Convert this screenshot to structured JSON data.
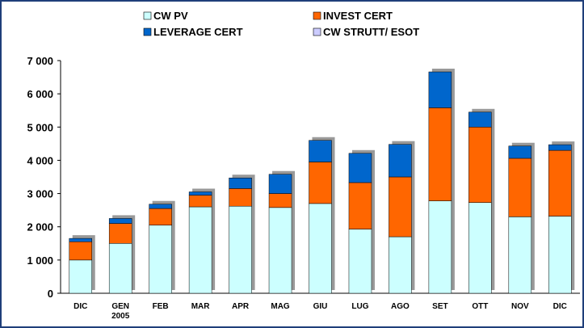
{
  "chart_data": {
    "type": "stacked-bar",
    "categories": [
      "DIC",
      "GEN\n2005",
      "FEB",
      "MAR",
      "APR",
      "MAG",
      "GIU",
      "LUG",
      "AGO",
      "SET",
      "OTT",
      "NOV",
      "DIC"
    ],
    "series": [
      {
        "name": "CW PV",
        "color": "#ccffff",
        "values": [
          1000,
          1500,
          2050,
          2600,
          2620,
          2580,
          2700,
          1930,
          1700,
          2780,
          2730,
          2300,
          2320
        ]
      },
      {
        "name": "INVEST CERT",
        "color": "#ff6600",
        "values": [
          550,
          600,
          500,
          350,
          530,
          420,
          1250,
          1400,
          1800,
          2800,
          2270,
          1760,
          1980
        ]
      },
      {
        "name": "LEVERAGE CERT",
        "color": "#0066cc",
        "values": [
          100,
          150,
          130,
          100,
          320,
          580,
          650,
          880,
          980,
          1080,
          450,
          370,
          170
        ]
      },
      {
        "name": "CW STRUTT/ ESOT",
        "color": "#ccccff",
        "values": [
          0,
          0,
          0,
          0,
          0,
          0,
          0,
          0,
          0,
          0,
          0,
          0,
          0
        ]
      }
    ],
    "ylim": [
      0,
      7000
    ],
    "yticks": [
      0,
      {
        "value": 1000,
        "label": "1 000"
      },
      {
        "value": 2000,
        "label": "2 000"
      },
      {
        "value": 3000,
        "label": "3 000"
      },
      {
        "value": 4000,
        "label": "4 000"
      },
      {
        "value": 5000,
        "label": "5 000"
      },
      {
        "value": 6000,
        "label": "6 000"
      },
      {
        "value": 7000,
        "label": "7 000"
      }
    ]
  }
}
